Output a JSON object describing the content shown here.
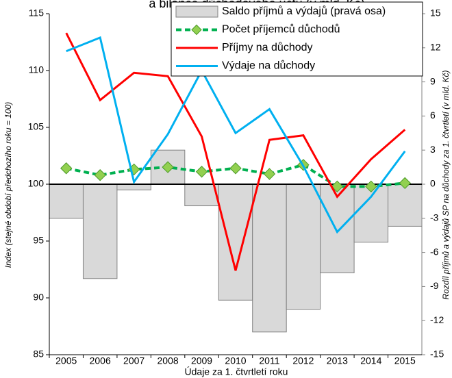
{
  "chart_data": {
    "type": "combo",
    "title": "a bilance důchodového účtu (v mld. Kč)",
    "xlabel": "Údaje za 1. čtvrtletí roku",
    "ylabel": "Index (stejné období předchozího roku = 100)",
    "y2label": "Rozdíl příjmů a výdajů SP na důchody za 1. čtvrtletí (v mld. Kč)",
    "categories": [
      "2005",
      "2006",
      "2007",
      "2008",
      "2009",
      "2010",
      "2011",
      "2012",
      "2013",
      "2014",
      "2015"
    ],
    "ylim": [
      85,
      115
    ],
    "yticks": [
      85,
      90,
      95,
      100,
      105,
      110,
      115
    ],
    "y2lim": [
      -15,
      15
    ],
    "y2ticks": [
      -15,
      -12,
      -9,
      -6,
      -3,
      0,
      3,
      6,
      9,
      12,
      15
    ],
    "legend": "upper right",
    "series": [
      {
        "name": "Saldo příjmů a výdajů (pravá osa)",
        "type": "bar",
        "axis": "y2",
        "color": "#d9d9d9",
        "values": [
          -3.0,
          -8.3,
          -0.5,
          3.0,
          -1.9,
          -10.2,
          -13.0,
          -11.0,
          -7.8,
          -5.1,
          -3.7
        ]
      },
      {
        "name": "Počet příjemců důchodů",
        "type": "line",
        "dashed": true,
        "marker": "diamond",
        "color": "#00b050",
        "values": [
          101.4,
          100.8,
          101.3,
          101.5,
          101.1,
          101.4,
          100.9,
          101.7,
          99.8,
          99.8,
          100.1
        ]
      },
      {
        "name": "Příjmy na důchody",
        "type": "line",
        "color": "#ff0000",
        "values": [
          113.3,
          107.4,
          109.8,
          109.5,
          104.2,
          92.4,
          103.9,
          104.3,
          98.9,
          102.2,
          104.8
        ]
      },
      {
        "name": "Výdaje na důchody",
        "type": "line",
        "color": "#00b0f0",
        "values": [
          111.7,
          112.9,
          100.2,
          104.4,
          110.0,
          104.5,
          106.6,
          101.6,
          95.8,
          98.9,
          102.9
        ]
      }
    ]
  }
}
